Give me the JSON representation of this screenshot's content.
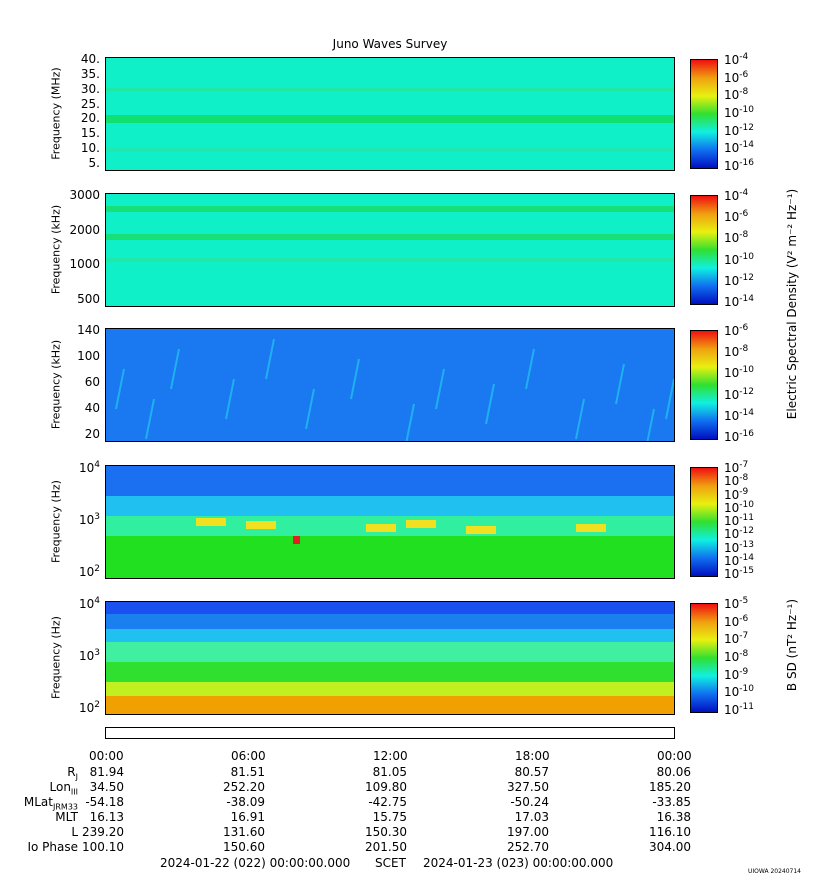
{
  "title": "Juno Waves Survey",
  "panels": [
    {
      "ylabel": "Frequency (MHz)",
      "yticks": [
        "40.",
        "35.",
        "30.",
        "25.",
        "20.",
        "15.",
        "10.",
        "5."
      ],
      "colorbar_ticks": [
        "-4",
        "-6",
        "-8",
        "-10",
        "-12",
        "-14",
        "-16"
      ],
      "base_color": "#0ff0c8",
      "band_color": "#10e070"
    },
    {
      "ylabel": "Frequency (kHz)",
      "yticks": [
        "3000",
        "2000",
        "1000",
        "500"
      ],
      "colorbar_ticks": [
        "-4",
        "-6",
        "-8",
        "-10",
        "-12",
        "-14"
      ],
      "base_color": "#10f0c8",
      "band_color": "#18e078"
    },
    {
      "ylabel": "Frequency (kHz)",
      "yticks": [
        "140",
        "100",
        "60",
        "40",
        "20"
      ],
      "colorbar_ticks": [
        "-6",
        "-8",
        "-10",
        "-12",
        "-14",
        "-16"
      ],
      "base_color": "#1a78f0",
      "band_color": "#20c8f0"
    },
    {
      "ylabel": "Frequency (Hz)",
      "yticks": [
        "4",
        "3",
        "2"
      ],
      "colorbar_ticks": [
        "-7",
        "-8",
        "-9",
        "-10",
        "-11",
        "-12",
        "-13",
        "-14",
        "-15"
      ],
      "base_color": "#20e020",
      "band_color": "#f0e020"
    },
    {
      "ylabel": "Frequency (Hz)",
      "yticks": [
        "4",
        "3",
        "2"
      ],
      "colorbar_ticks": [
        "-5",
        "-6",
        "-7",
        "-8",
        "-9",
        "-10",
        "-11"
      ],
      "base_color": "#30e030",
      "band_color": "#f0a000"
    }
  ],
  "side_labels": {
    "electric": "Electric Spectral Density (V",
    "electric_unit_tail": "2 m-2 Hz-1)",
    "magnetic": "B SD (nT",
    "magnetic_tail": "2 Hz-1)"
  },
  "electric_label": "Electric Spectral Density (V² m⁻² Hz⁻¹)",
  "magnetic_label": "B SD (nT² Hz⁻¹)",
  "colorbar_base": "10",
  "time_ticks": [
    "00:00",
    "06:00",
    "12:00",
    "18:00",
    "00:00"
  ],
  "ephemeris": [
    {
      "label": "R",
      "sub": "J",
      "values": [
        "81.94",
        "81.51",
        "81.05",
        "80.57",
        "80.06"
      ]
    },
    {
      "label": "Lon",
      "sub": "III",
      "values": [
        "34.50",
        "252.20",
        "109.80",
        "327.50",
        "185.20"
      ]
    },
    {
      "label": "MLat",
      "sub": "JRM33",
      "values": [
        "-54.18",
        "-38.09",
        "-42.75",
        "-50.24",
        "-33.85"
      ]
    },
    {
      "label": "MLT",
      "sub": "",
      "values": [
        "16.13",
        "16.91",
        "15.75",
        "17.03",
        "16.38"
      ]
    },
    {
      "label": "L",
      "sub": "",
      "values": [
        "239.20",
        "131.60",
        "150.30",
        "197.00",
        "116.10"
      ]
    },
    {
      "label": "Io Phase",
      "sub": "",
      "values": [
        "100.10",
        "150.60",
        "201.50",
        "252.70",
        "304.00"
      ]
    }
  ],
  "footer": {
    "start": "2024-01-22 (022) 00:00:00.000",
    "mid": "SCET",
    "end": "2024-01-23 (023) 00:00:00.000"
  },
  "watermark": "UIOWA 20240714",
  "chart_data": {
    "type": "heatmap",
    "title": "Juno Waves Survey",
    "x": [
      "00:00",
      "06:00",
      "12:00",
      "18:00",
      "00:00"
    ],
    "xlabel": "SCET",
    "panels": [
      {
        "ylabel": "Frequency (MHz)",
        "ylim": [
          3,
          41
        ],
        "zlim_log10": [
          -17,
          -4
        ]
      },
      {
        "ylabel": "Frequency (kHz)",
        "ylim": [
          150,
          3000
        ],
        "zlim_log10": [
          -15,
          -4
        ]
      },
      {
        "ylabel": "Frequency (kHz)",
        "ylim": [
          20,
          140
        ],
        "zlim_log10": [
          -16,
          -6
        ]
      },
      {
        "ylabel": "Frequency (Hz)",
        "ylim": [
          50,
          20000
        ],
        "zlim_log10": [
          -15,
          -7
        ]
      },
      {
        "ylabel": "Frequency (Hz)",
        "ylim": [
          50,
          20000
        ],
        "zlim_log10": [
          -11,
          -4.5
        ]
      }
    ]
  }
}
